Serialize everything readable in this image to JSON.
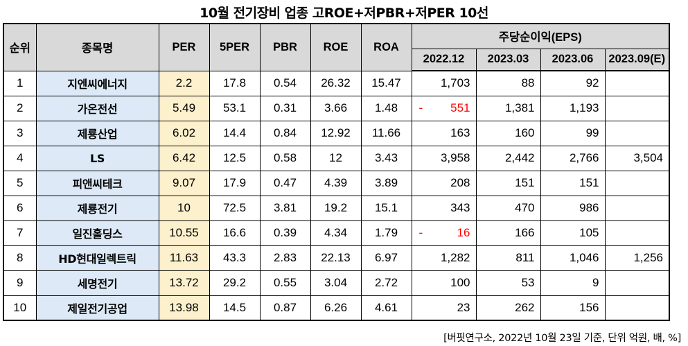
{
  "title": "10월  전기장비 업종 고ROE+저PBR+저PER 10선",
  "headers": {
    "rank": "순위",
    "name": "종목명",
    "per": "PER",
    "fper": "5PER",
    "pbr": "PBR",
    "roe": "ROE",
    "roa": "ROA",
    "eps_group": "주당순이익(EPS)",
    "eps_periods": [
      "2022.12",
      "2023.03",
      "2023.06",
      "2023.09(E)"
    ]
  },
  "rows": [
    {
      "rank": "1",
      "name": "지엔씨에너지",
      "per": "2.2",
      "fper": "17.8",
      "pbr": "0.54",
      "roe": "26.32",
      "roa": "15.47",
      "eps": [
        "1,703",
        "88",
        "92",
        ""
      ],
      "neg": false
    },
    {
      "rank": "2",
      "name": "가온전선",
      "per": "5.49",
      "fper": "53.1",
      "pbr": "0.31",
      "roe": "3.66",
      "roa": "1.48",
      "eps": [
        "551",
        "1,381",
        "1,193",
        ""
      ],
      "neg": true
    },
    {
      "rank": "3",
      "name": "제룡산업",
      "per": "6.02",
      "fper": "14.4",
      "pbr": "0.84",
      "roe": "12.92",
      "roa": "11.66",
      "eps": [
        "163",
        "160",
        "99",
        ""
      ],
      "neg": false
    },
    {
      "rank": "4",
      "name": "LS",
      "per": "6.42",
      "fper": "12.5",
      "pbr": "0.58",
      "roe": "12",
      "roa": "3.43",
      "eps": [
        "3,958",
        "2,442",
        "2,766",
        "3,504"
      ],
      "neg": false
    },
    {
      "rank": "5",
      "name": "피앤씨테크",
      "per": "9.07",
      "fper": "17.9",
      "pbr": "0.47",
      "roe": "4.39",
      "roa": "3.89",
      "eps": [
        "208",
        "151",
        "151",
        ""
      ],
      "neg": false
    },
    {
      "rank": "6",
      "name": "제룡전기",
      "per": "10",
      "fper": "72.5",
      "pbr": "3.81",
      "roe": "19.2",
      "roa": "15.1",
      "eps": [
        "343",
        "470",
        "986",
        ""
      ],
      "neg": false
    },
    {
      "rank": "7",
      "name": "일진홀딩스",
      "per": "10.55",
      "fper": "16.6",
      "pbr": "0.39",
      "roe": "4.34",
      "roa": "1.79",
      "eps": [
        "16",
        "166",
        "105",
        ""
      ],
      "neg": true
    },
    {
      "rank": "8",
      "name": "HD현대일렉트릭",
      "per": "11.63",
      "fper": "43.3",
      "pbr": "2.83",
      "roe": "22.13",
      "roa": "6.97",
      "eps": [
        "1,282",
        "811",
        "1,046",
        "1,256"
      ],
      "neg": false
    },
    {
      "rank": "9",
      "name": "세명전기",
      "per": "13.72",
      "fper": "29.2",
      "pbr": "0.55",
      "roe": "3.04",
      "roa": "2.72",
      "eps": [
        "100",
        "53",
        "9",
        ""
      ],
      "neg": false
    },
    {
      "rank": "10",
      "name": "제일전기공업",
      "per": "13.98",
      "fper": "14.5",
      "pbr": "0.87",
      "roe": "6.26",
      "roa": "4.61",
      "eps": [
        "23",
        "262",
        "156",
        ""
      ],
      "neg": false
    }
  ],
  "neg_sign": "-",
  "colors": {
    "header_bg": "#d9d9d9",
    "name_bg": "#dde9f6",
    "per_bg": "#fdf0cc",
    "negative": "#ff0000"
  },
  "footer": "[버핏연구소, 2022년 10월 23일 기준, 단위 억원, 배, %]"
}
